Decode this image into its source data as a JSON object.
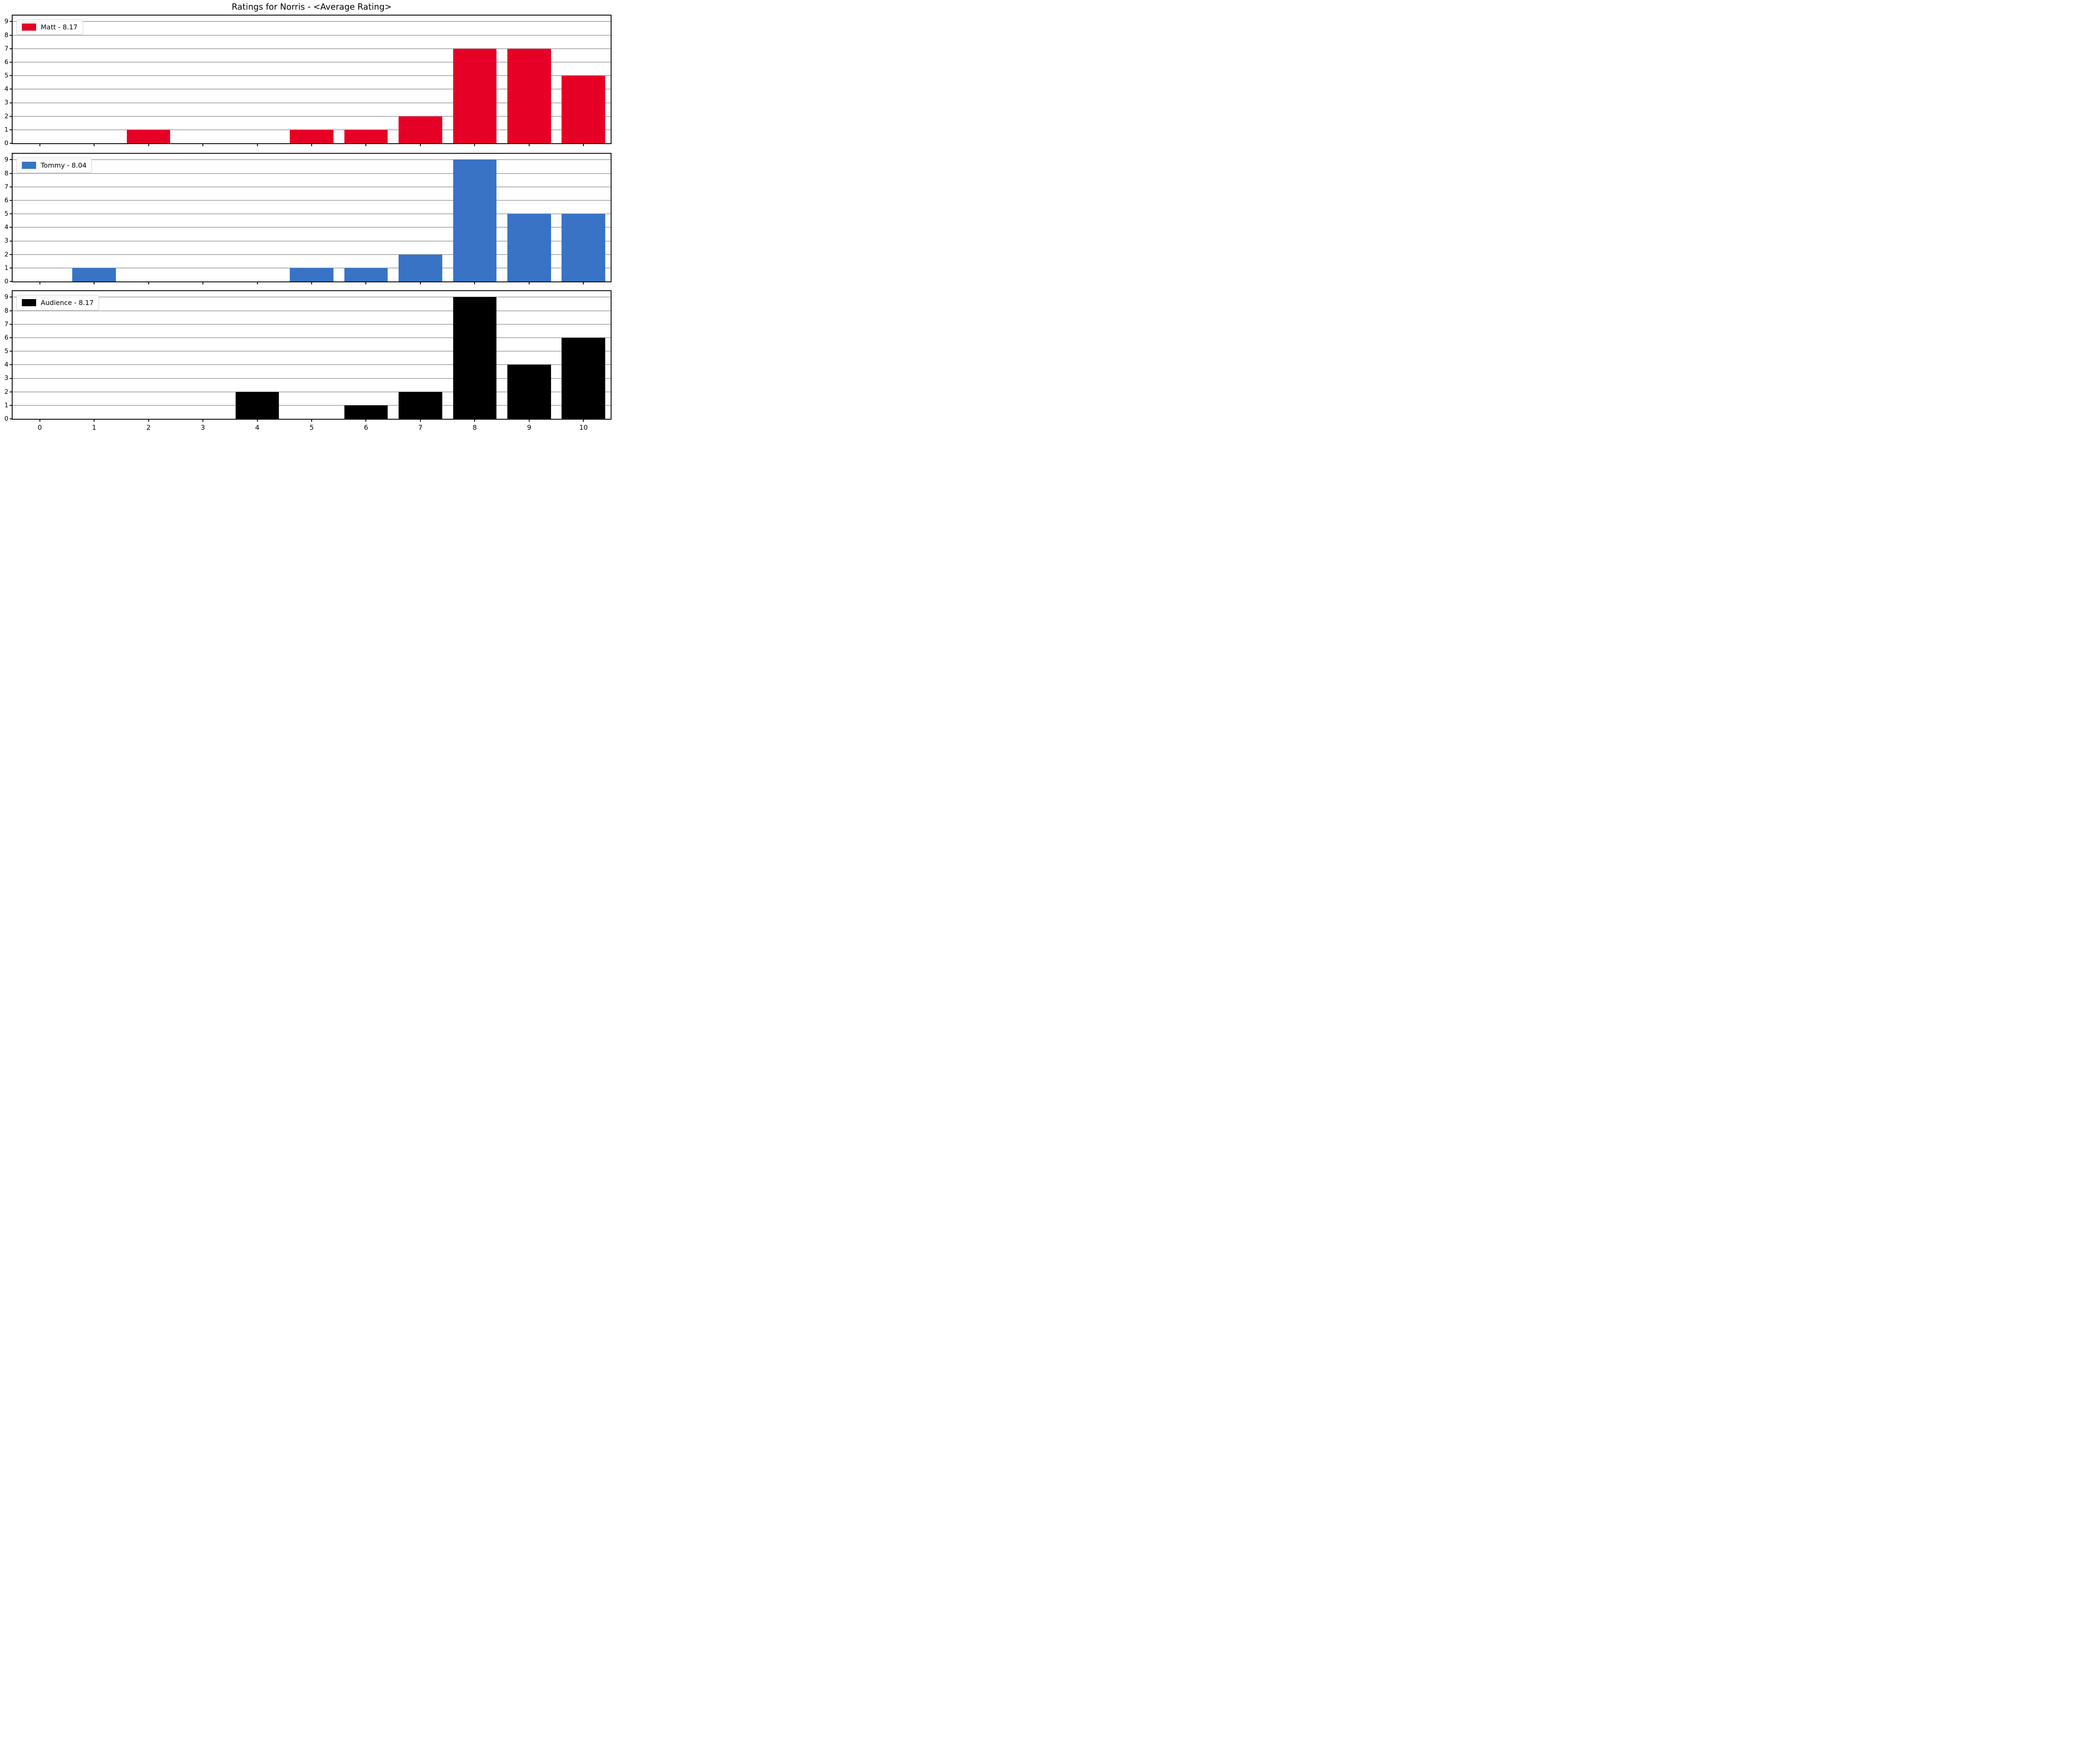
{
  "title": "Ratings for Norris - <Average Rating>",
  "chart_data": {
    "type": "bar",
    "title": "Ratings for Norris - <Average Rating>",
    "xlabel": "",
    "ylabel": "",
    "categories": [
      0,
      1,
      2,
      3,
      4,
      5,
      6,
      7,
      8,
      9,
      10
    ],
    "x_tick_labels": [
      "0",
      "1",
      "2",
      "3",
      "4",
      "5",
      "6",
      "7",
      "8",
      "9",
      "10"
    ],
    "y_ticks": [
      0,
      1,
      2,
      3,
      4,
      5,
      6,
      7,
      8,
      9
    ],
    "xlim": [
      -0.5,
      10.5
    ],
    "ylim": [
      0,
      9.45
    ],
    "grid": "horizontal",
    "grid_color": "#b0b0b0",
    "layout": "3 stacked subplots sharing x axis, legend upper-left in each",
    "series": [
      {
        "name": "Matt",
        "average": "8.17",
        "legend": "Matt - 8.17",
        "color": "#e60026",
        "values": [
          0,
          0,
          1,
          0,
          0,
          1,
          1,
          2,
          7,
          7,
          5
        ]
      },
      {
        "name": "Tommy",
        "average": "8.04",
        "legend": "Tommy - 8.04",
        "color": "#3873c6",
        "values": [
          0,
          1,
          0,
          0,
          0,
          1,
          1,
          2,
          9,
          5,
          5
        ]
      },
      {
        "name": "Audience",
        "average": "8.17",
        "legend": "Audience - 8.17",
        "color": "#000000",
        "values": [
          0,
          0,
          0,
          0,
          2,
          0,
          1,
          2,
          9,
          4,
          6
        ]
      }
    ]
  }
}
